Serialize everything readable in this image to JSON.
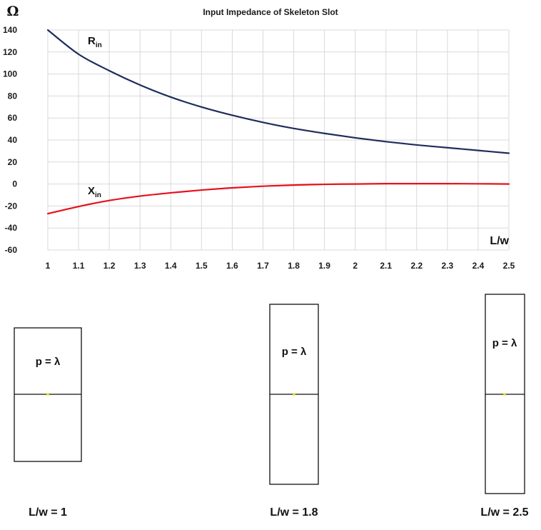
{
  "chart_data": {
    "type": "line",
    "title": "Input Impedance of Skeleton Slot",
    "unit_label": "Ω",
    "xlabel": "L/w",
    "xlim": [
      1,
      2.5
    ],
    "ylim": [
      -60,
      140
    ],
    "x_ticks": [
      "1",
      "1.1",
      "1.2",
      "1.3",
      "1.4",
      "1.5",
      "1.6",
      "1.7",
      "1.8",
      "1.9",
      "2",
      "2.1",
      "2.2",
      "2.3",
      "2.4",
      "2.5"
    ],
    "y_ticks": [
      "140",
      "120",
      "100",
      "80",
      "60",
      "40",
      "20",
      "0",
      "-20",
      "-40",
      "-60"
    ],
    "grid": true,
    "series": [
      {
        "name_main": "R",
        "name_sub": "in",
        "color": "#1f2d5c",
        "x": [
          1.0,
          1.1,
          1.2,
          1.3,
          1.4,
          1.5,
          1.6,
          1.7,
          1.8,
          1.9,
          2.0,
          2.1,
          2.2,
          2.3,
          2.4,
          2.5
        ],
        "y": [
          140,
          118,
          103,
          90,
          79,
          70,
          62.5,
          56,
          50.5,
          46,
          42,
          38.5,
          35.5,
          33,
          30.5,
          28
        ]
      },
      {
        "name_main": "X",
        "name_sub": "in",
        "color": "#e8101c",
        "x": [
          1.0,
          1.1,
          1.2,
          1.3,
          1.4,
          1.5,
          1.6,
          1.7,
          1.8,
          1.9,
          2.0,
          2.1,
          2.2,
          2.3,
          2.4,
          2.5
        ],
        "y": [
          -27,
          -20.5,
          -15,
          -11,
          -8,
          -5.5,
          -3.5,
          -2,
          -1,
          -0.3,
          0,
          0.3,
          0.3,
          0.3,
          0.2,
          0
        ]
      }
    ]
  },
  "slots": [
    {
      "label": "p = λ",
      "caption": "L/w = 1"
    },
    {
      "label": "p = λ",
      "caption": "L/w = 1.8"
    },
    {
      "label": "p = λ",
      "caption": "L/w = 2.5"
    }
  ]
}
